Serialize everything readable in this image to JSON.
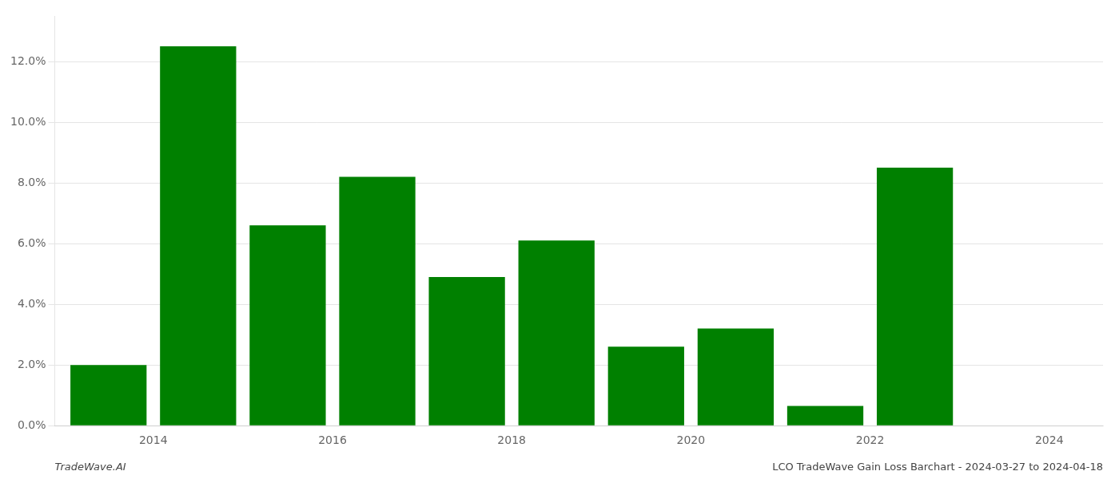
{
  "chart_data": {
    "type": "bar",
    "x": [
      2014,
      2015,
      2016,
      2017,
      2018,
      2019,
      2020,
      2021,
      2022,
      2023,
      2024
    ],
    "values": [
      0.02,
      0.125,
      0.066,
      0.082,
      0.049,
      0.061,
      0.026,
      0.032,
      0.0065,
      0.085,
      0.0
    ],
    "color": "#008000",
    "xlim": [
      2013.4,
      2025.1
    ],
    "xticks": [
      {
        "value": 2014.5,
        "label": "2014"
      },
      {
        "value": 2016.5,
        "label": "2016"
      },
      {
        "value": 2018.5,
        "label": "2018"
      },
      {
        "value": 2020.5,
        "label": "2020"
      },
      {
        "value": 2022.5,
        "label": "2022"
      },
      {
        "value": 2024.5,
        "label": "2024"
      }
    ],
    "ylim": [
      0.0,
      0.135
    ],
    "yticks": [
      {
        "value": 0,
        "label": "0.0%"
      },
      {
        "value": 0.02,
        "label": "2.0%"
      },
      {
        "value": 0.04,
        "label": "4.0%"
      },
      {
        "value": 0.06,
        "label": "6.0%"
      },
      {
        "value": 0.08,
        "label": "8.0%"
      },
      {
        "value": 0.1,
        "label": "10.0%"
      },
      {
        "value": 0.12,
        "label": "12.0%"
      }
    ],
    "grid": true,
    "annotations": [
      "TradeWave.AI",
      "LCO TradeWave Gain Loss Barchart - 2024-03-27 to 2024-04-18"
    ]
  }
}
